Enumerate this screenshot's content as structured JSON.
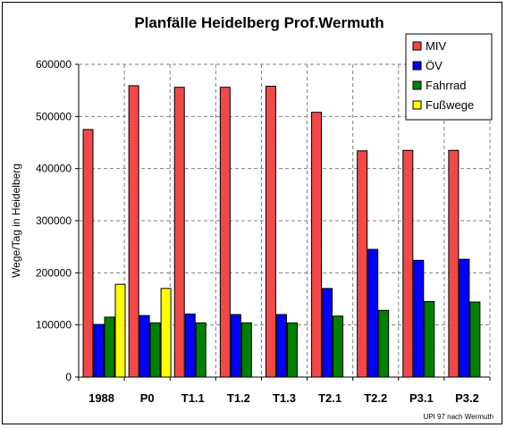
{
  "chart_data": {
    "type": "bar",
    "title": "Planfälle Heidelberg Prof.Wermuth",
    "ylabel": "Wege/Tag in Heidelberg",
    "xlabel": "",
    "ylim": [
      0,
      600000
    ],
    "yticks": [
      "0",
      "100000",
      "200000",
      "300000",
      "400000",
      "500000",
      "600000"
    ],
    "grid": true,
    "legend_position": "top-right",
    "categories": [
      "1988",
      "P0",
      "T1.1",
      "T1.2",
      "T1.3",
      "T2.1",
      "T2.2",
      "P3.1",
      "P3.2"
    ],
    "series": [
      {
        "name": "MIV",
        "color": "#ff4b4b",
        "values": [
          475000,
          559000,
          556000,
          556000,
          558000,
          508000,
          434000,
          435000,
          435000
        ]
      },
      {
        "name": "ÖV",
        "color": "#0000ff",
        "values": [
          101000,
          118000,
          121000,
          120000,
          120000,
          170000,
          245000,
          224000,
          226000
        ]
      },
      {
        "name": "Fahrrad",
        "color": "#008000",
        "values": [
          115000,
          104000,
          104000,
          104000,
          104000,
          117000,
          128000,
          145000,
          144000
        ]
      },
      {
        "name": "Fußwege",
        "color": "#ffff00",
        "values": [
          178000,
          170000,
          null,
          null,
          null,
          null,
          null,
          null,
          null
        ]
      }
    ],
    "source_note": "UPI 97 nach Wermuth"
  }
}
